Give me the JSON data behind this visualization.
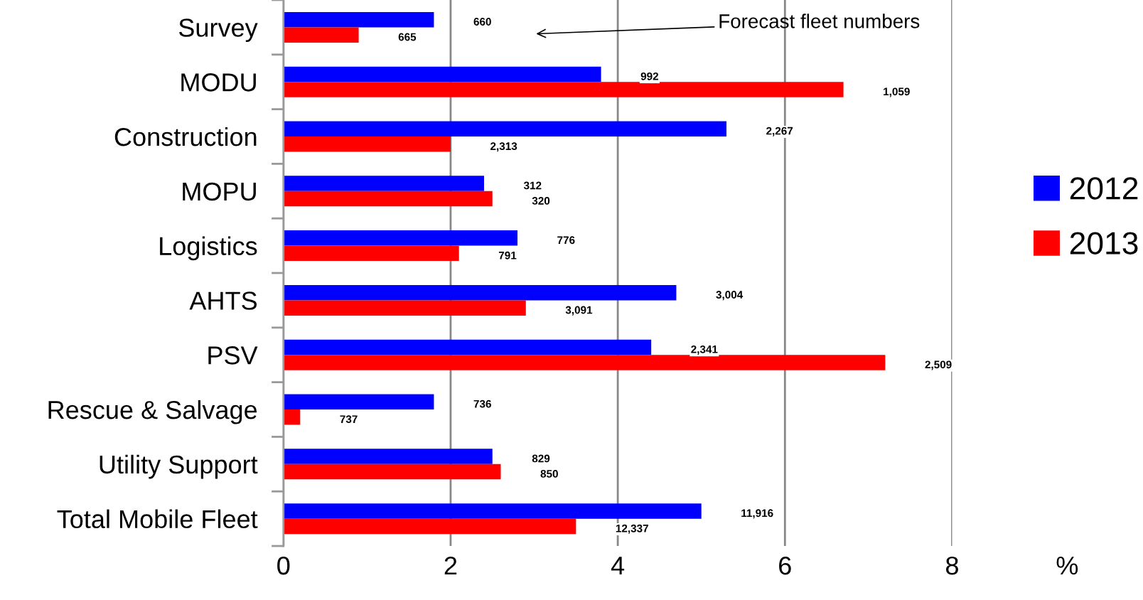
{
  "chart_data": {
    "type": "bar",
    "orientation": "horizontal",
    "categories": [
      "Survey",
      "MODU",
      "Construction",
      "MOPU",
      "Logistics",
      "AHTS",
      "PSV",
      "Rescue & Salvage",
      "Utility Support",
      "Total Mobile Fleet"
    ],
    "series": [
      {
        "name": "2012",
        "color": "#0000ff",
        "values": [
          1.8,
          3.8,
          5.3,
          2.4,
          2.8,
          4.7,
          4.4,
          1.8,
          2.5,
          5.0
        ]
      },
      {
        "name": "2013",
        "color": "#ff0000",
        "values": [
          0.9,
          6.7,
          2.0,
          2.5,
          2.1,
          2.9,
          7.2,
          0.2,
          2.6,
          3.5
        ]
      }
    ],
    "xlabel": "%",
    "xlim": [
      0,
      8
    ],
    "xticks": [
      0,
      2,
      4,
      6,
      8
    ],
    "grid": "x",
    "legend": "right",
    "annotations": [
      "Forecast fleet numbers",
      "660",
      "665",
      "992",
      "1,059",
      "2,267",
      "2,313",
      "312",
      "320",
      "776",
      "791",
      "3,004",
      "3,091",
      "2,341",
      "2,509",
      "736",
      "737",
      "829",
      "850",
      "11,916",
      "12,337"
    ]
  }
}
